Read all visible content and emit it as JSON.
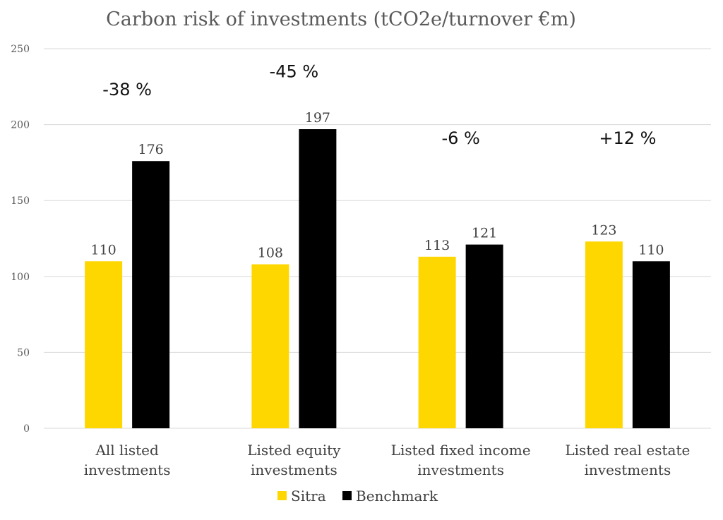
{
  "chart_data": {
    "type": "bar",
    "title": "Carbon risk of investments (tCO2e/turnover €m)",
    "categories": [
      [
        "All listed",
        "investments"
      ],
      [
        "Listed equity",
        "investments"
      ],
      [
        "Listed fixed income",
        "investments"
      ],
      [
        "Listed real estate",
        "investments"
      ]
    ],
    "series": [
      {
        "name": "Sitra",
        "values": [
          110,
          108,
          113,
          123
        ],
        "color": "#FFD700"
      },
      {
        "name": "Benchmark",
        "values": [
          176,
          197,
          121,
          110
        ],
        "color": "#000000"
      }
    ],
    "annotations": [
      "-38 %",
      "-45 %",
      "-6 %",
      "+12 %"
    ],
    "annotation_values": [
      223,
      235,
      191,
      191
    ],
    "yticks": [
      0,
      50,
      100,
      150,
      200,
      250
    ],
    "ylim": [
      0,
      250
    ],
    "grid": true,
    "legend_position": "bottom-center"
  }
}
